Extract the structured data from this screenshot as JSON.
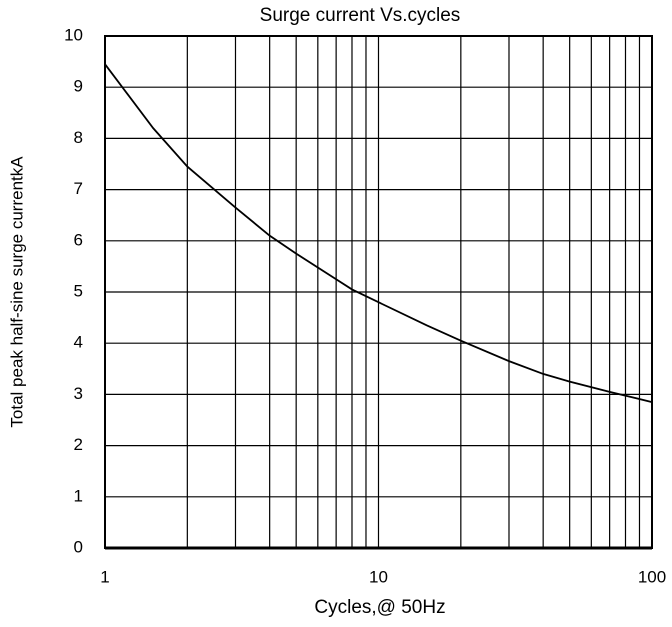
{
  "chart_data": {
    "type": "line",
    "title": "Surge current  Vs.cycles",
    "xlabel": "Cycles,@ 50Hz",
    "ylabel": "Total peak half-sine surge currentkA",
    "xscale": "log",
    "xlim": [
      1,
      100
    ],
    "xticks": [
      1,
      10,
      100
    ],
    "xminor": [
      2,
      3,
      4,
      5,
      6,
      7,
      8,
      9,
      20,
      30,
      40,
      50,
      60,
      70,
      80,
      90
    ],
    "ylim": [
      0,
      10
    ],
    "yticks": [
      0,
      1,
      2,
      3,
      4,
      5,
      6,
      7,
      8,
      9,
      10
    ],
    "grid": true,
    "series": [
      {
        "color": "#000000",
        "x": [
          1,
          1.5,
          2,
          3,
          4,
          5,
          7,
          8,
          10,
          15,
          20,
          30,
          40,
          50,
          70,
          100
        ],
        "values": [
          9.45,
          8.2,
          7.45,
          6.65,
          6.1,
          5.75,
          5.25,
          5.05,
          4.8,
          4.35,
          4.05,
          3.65,
          3.4,
          3.25,
          3.05,
          2.85
        ]
      }
    ]
  }
}
